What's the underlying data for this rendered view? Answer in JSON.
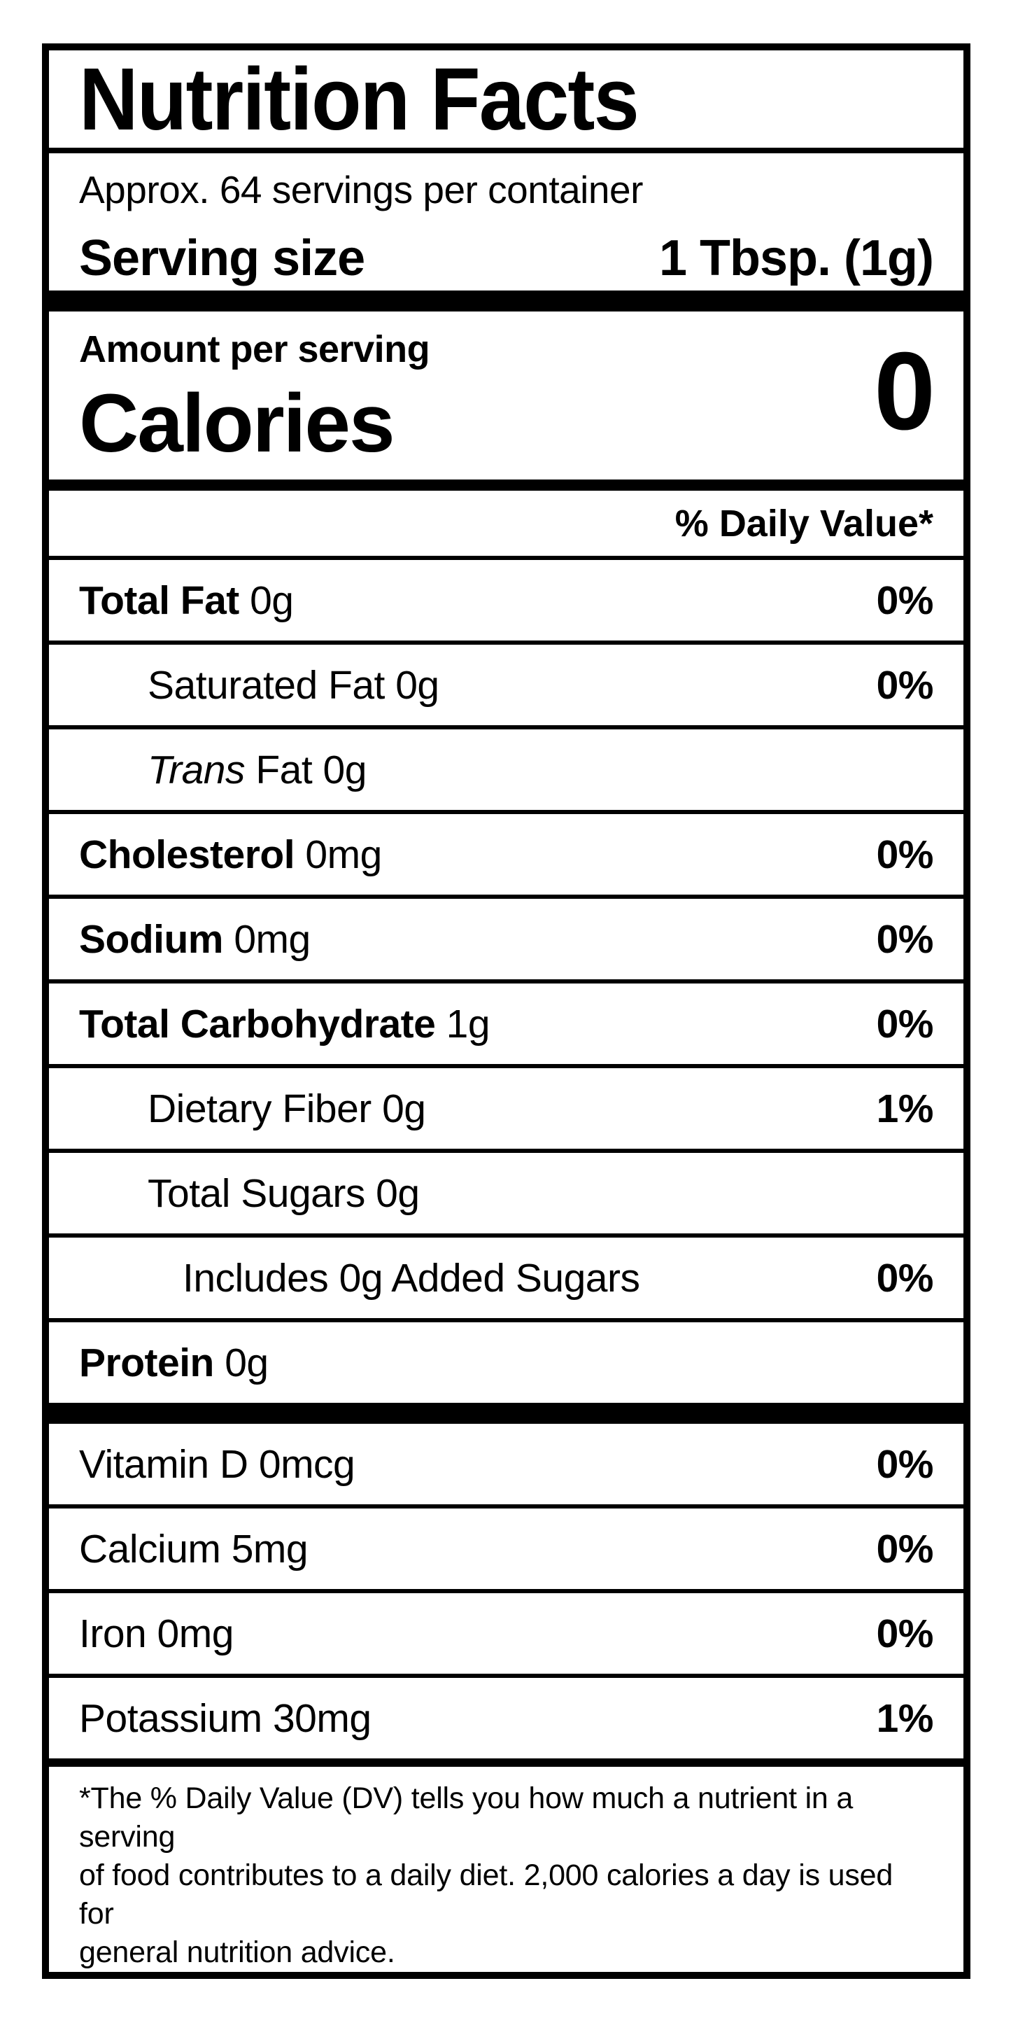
{
  "label": {
    "title": "Nutrition Facts",
    "servings_per_container": "Approx. 64 servings per container",
    "serving_size_label": "Serving size",
    "serving_size_value": "1 Tbsp. (1g)",
    "amount_per_serving": "Amount per serving",
    "calories_label": "Calories",
    "calories_value": "0",
    "daily_value_header": "% Daily Value*",
    "nutrients": [
      {
        "bold": "Total Fat",
        "rest": " 0g",
        "dv": "0%"
      },
      {
        "bold": "",
        "rest": "Saturated Fat 0g",
        "dv": "0%"
      },
      {
        "italic": "Trans",
        "rest": " Fat 0g",
        "dv": ""
      },
      {
        "bold": "Cholesterol",
        "rest": " 0mg",
        "dv": "0%"
      },
      {
        "bold": "Sodium",
        "rest": " 0mg",
        "dv": "0%"
      },
      {
        "bold": "Total Carbohydrate",
        "rest": " 1g",
        "dv": "0%"
      },
      {
        "bold": "",
        "rest": "Dietary Fiber 0g",
        "dv": "1%"
      },
      {
        "bold": "",
        "rest": "Total Sugars 0g",
        "dv": ""
      },
      {
        "bold": "",
        "rest": "Includes 0g Added Sugars",
        "dv": "0%"
      },
      {
        "bold": "Protein",
        "rest": " 0g",
        "dv": ""
      }
    ],
    "vitamins": [
      {
        "name": "Vitamin D 0mcg",
        "dv": "0%"
      },
      {
        "name": "Calcium 5mg",
        "dv": "0%"
      },
      {
        "name": "Iron 0mg",
        "dv": "0%"
      },
      {
        "name": "Potassium 30mg",
        "dv": "1%"
      }
    ],
    "footnote_lines": [
      "*The % Daily Value (DV) tells you how much a nutrient in a serving",
      "of food contributes to a daily diet. 2,000 calories a day is used for",
      "general nutrition advice."
    ],
    "colors": {
      "text": "#000000",
      "background": "#ffffff"
    }
  }
}
